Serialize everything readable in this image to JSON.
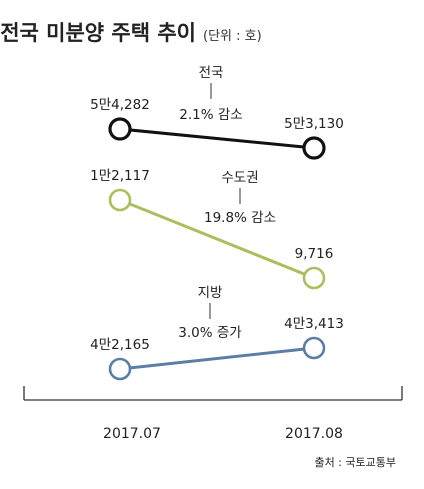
{
  "chart_data": {
    "type": "line",
    "title": "전국 미분양 주택 추이",
    "subtitle": "(단위 : 호)",
    "categories": [
      "2017.07",
      "2017.08"
    ],
    "series": [
      {
        "name": "전국",
        "values": [
          54282,
          53130
        ],
        "value_labels": [
          "5만4,282",
          "5만3,130"
        ],
        "change_label": "2.1% 감소",
        "color": "#111111"
      },
      {
        "name": "수도권",
        "values": [
          12117,
          9716
        ],
        "value_labels": [
          "1만2,117",
          "9,716"
        ],
        "change_label": "19.8% 감소",
        "color": "#a8bf5a"
      },
      {
        "name": "지방",
        "values": [
          42165,
          43413
        ],
        "value_labels": [
          "4만2,165",
          "4만3,413"
        ],
        "change_label": "3.0% 증가",
        "color": "#5b7ea6"
      }
    ],
    "source": "출처 : 국토교통부",
    "grid": false,
    "legend": "none"
  }
}
